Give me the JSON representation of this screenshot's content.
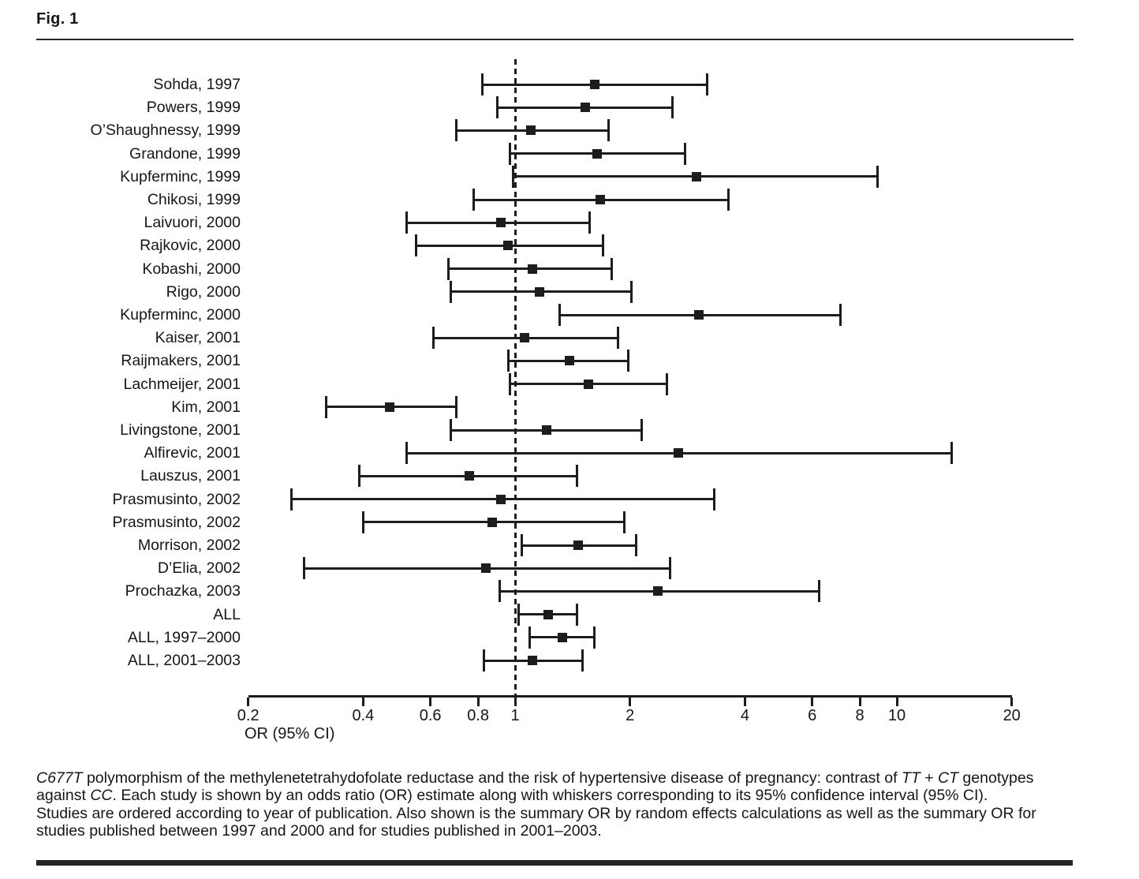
{
  "figure": {
    "label": "Fig. 1"
  },
  "chart_data": {
    "type": "forest",
    "xlabel": "OR (95% CI)",
    "x_scale": "log",
    "x_range": [
      0.2,
      20
    ],
    "x_ticks": [
      0.2,
      0.4,
      0.6,
      0.8,
      1,
      2,
      4,
      6,
      8,
      10,
      20
    ],
    "reference_line": 1,
    "grid": false,
    "marker": "black-square",
    "studies": [
      {
        "label": "Sohda, 1997",
        "or": 1.62,
        "ci_low": 0.82,
        "ci_high": 3.19
      },
      {
        "label": "Powers, 1999",
        "or": 1.53,
        "ci_low": 0.9,
        "ci_high": 2.58
      },
      {
        "label": "O’Shaughnessy, 1999",
        "or": 1.1,
        "ci_low": 0.7,
        "ci_high": 1.76
      },
      {
        "label": "Grandone, 1999",
        "or": 1.64,
        "ci_low": 0.97,
        "ci_high": 2.79
      },
      {
        "label": "Kupferminc, 1999",
        "or": 2.99,
        "ci_low": 0.99,
        "ci_high": 8.9
      },
      {
        "label": "Chikosi, 1999",
        "or": 1.67,
        "ci_low": 0.78,
        "ci_high": 3.63
      },
      {
        "label": "Laivuori, 2000",
        "or": 0.92,
        "ci_low": 0.52,
        "ci_high": 1.57
      },
      {
        "label": "Rajkovic, 2000",
        "or": 0.96,
        "ci_low": 0.55,
        "ci_high": 1.7
      },
      {
        "label": "Kobashi, 2000",
        "or": 1.11,
        "ci_low": 0.67,
        "ci_high": 1.79
      },
      {
        "label": "Rigo, 2000",
        "or": 1.16,
        "ci_low": 0.68,
        "ci_high": 2.02
      },
      {
        "label": "Kupferminc, 2000",
        "or": 3.03,
        "ci_low": 1.31,
        "ci_high": 7.1
      },
      {
        "label": "Kaiser, 2001",
        "or": 1.06,
        "ci_low": 0.61,
        "ci_high": 1.86
      },
      {
        "label": "Raijmakers, 2001",
        "or": 1.39,
        "ci_low": 0.96,
        "ci_high": 1.98
      },
      {
        "label": "Lachmeijer, 2001",
        "or": 1.56,
        "ci_low": 0.97,
        "ci_high": 2.5
      },
      {
        "label": "Kim, 2001",
        "or": 0.47,
        "ci_low": 0.32,
        "ci_high": 0.7
      },
      {
        "label": "Livingstone, 2001",
        "or": 1.21,
        "ci_low": 0.68,
        "ci_high": 2.15
      },
      {
        "label": "Alfirevic, 2001",
        "or": 2.68,
        "ci_low": 0.52,
        "ci_high": 13.9
      },
      {
        "label": "Lauszus, 2001",
        "or": 0.76,
        "ci_low": 0.39,
        "ci_high": 1.45
      },
      {
        "label": "Prasmusinto, 2002",
        "or": 0.92,
        "ci_low": 0.26,
        "ci_high": 3.33
      },
      {
        "label": "Prasmusinto, 2002",
        "or": 0.87,
        "ci_low": 0.4,
        "ci_high": 1.93
      },
      {
        "label": "Morrison, 2002",
        "or": 1.46,
        "ci_low": 1.04,
        "ci_high": 2.08
      },
      {
        "label": "D’Elia, 2002",
        "or": 0.84,
        "ci_low": 0.28,
        "ci_high": 2.55
      },
      {
        "label": "Prochazka, 2003",
        "or": 2.37,
        "ci_low": 0.91,
        "ci_high": 6.27
      },
      {
        "label": "ALL",
        "or": 1.22,
        "ci_low": 1.02,
        "ci_high": 1.45
      },
      {
        "label": "ALL, 1997–2000",
        "or": 1.33,
        "ci_low": 1.09,
        "ci_high": 1.61
      },
      {
        "label": "ALL, 2001–2003",
        "or": 1.11,
        "ci_low": 0.83,
        "ci_high": 1.5
      }
    ]
  },
  "caption": {
    "lines": [
      [
        {
          "text": "C677T",
          "italic": true
        },
        {
          "text": " polymorphism of the methylenetetrahydofolate reductase and the risk of hypertensive disease of pregnancy: contrast of ",
          "italic": false
        },
        {
          "text": "TT",
          "italic": true
        },
        {
          "text": " + ",
          "italic": false
        },
        {
          "text": "CT",
          "italic": true
        },
        {
          "text": " genotypes",
          "italic": false
        }
      ],
      [
        {
          "text": "against ",
          "italic": false
        },
        {
          "text": "CC",
          "italic": true
        },
        {
          "text": ". Each study is shown by an odds ratio (OR) estimate along with whiskers corresponding to its 95% confidence interval (95% CI).",
          "italic": false
        }
      ],
      [
        {
          "text": "Studies are ordered according to year of publication. Also shown is the summary OR by random effects calculations as well as the summary OR for",
          "italic": false
        }
      ],
      [
        {
          "text": "studies published between 1997 and 2000 and for studies published in 2001–2003.",
          "italic": false
        }
      ]
    ]
  },
  "colors": {
    "ink": "#1d1d1f",
    "background": "#ffffff"
  }
}
